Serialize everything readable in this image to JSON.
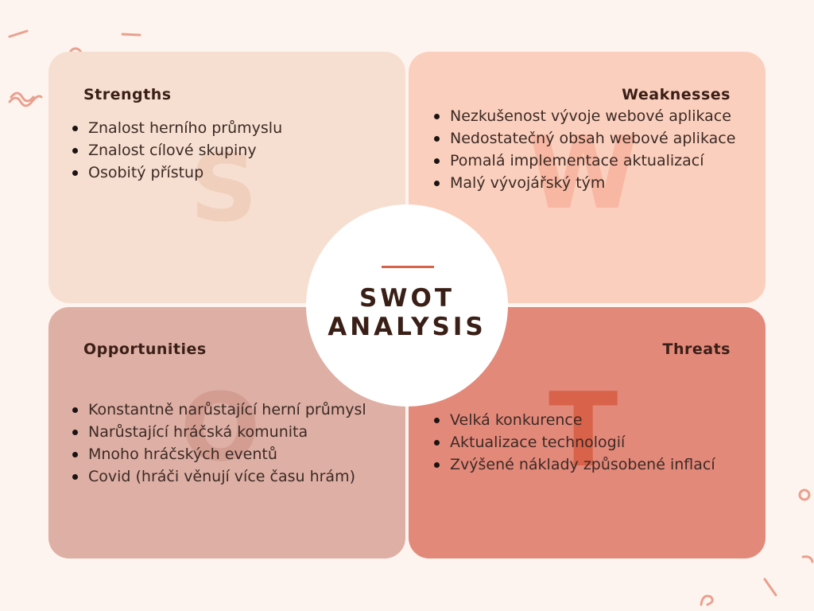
{
  "center": {
    "line1": "SWOT",
    "line2": "ANALYSIS"
  },
  "quadrants": {
    "strengths": {
      "title": "Strengths",
      "letter": "S",
      "items": [
        "Znalost herního průmyslu",
        "Znalost cílové skupiny",
        "Osobitý přístup"
      ]
    },
    "weaknesses": {
      "title": "Weaknesses",
      "letter": "W",
      "items": [
        "Nezkušenost vývoje webové aplikace",
        "Nedostatečný obsah webové aplikace",
        "Pomalá implementace aktualizací",
        "Malý vývojářský tým"
      ]
    },
    "opportunities": {
      "title": "Opportunities",
      "letter": "O",
      "items": [
        "Konstantně narůstající herní průmysl",
        "Narůstající hráčská komunita",
        "Mnoho hráčských eventů",
        "Covid (hráči věnují více času hrám)"
      ]
    },
    "threats": {
      "title": "Threats",
      "letter": "T",
      "items": [
        "Velká konkurence",
        "Aktualizace technologií",
        "Zvýšené náklady způsobené inflací"
      ]
    }
  },
  "colors": {
    "background": "#fdf4ef",
    "strengths": "#f6dfd1",
    "weaknesses": "#fbcfbd",
    "opportunities": "#deafa4",
    "threats": "#e3897a",
    "accent": "#d8624a",
    "text_dark": "#3a1f17"
  }
}
